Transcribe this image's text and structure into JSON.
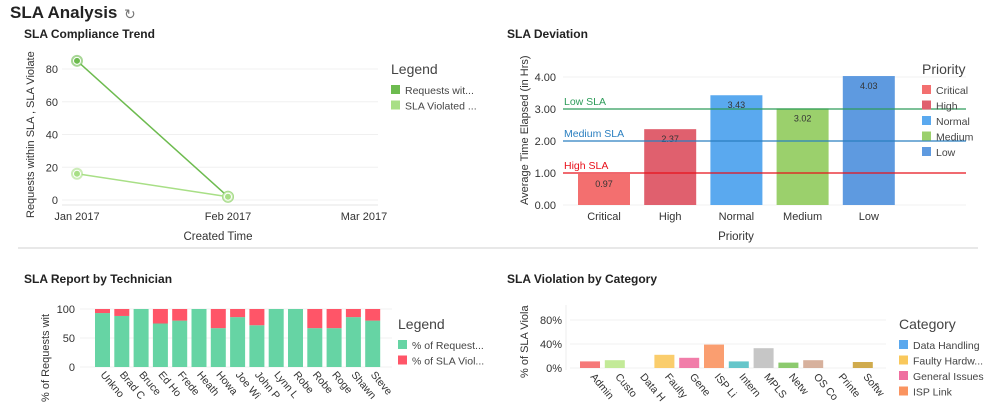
{
  "header": {
    "title": "SLA Analysis",
    "refresh_icon": "refresh-icon"
  },
  "chart_data": [
    {
      "type": "line",
      "title": "SLA Compliance Trend",
      "xlabel": "Created Time",
      "ylabel": "Requests within SLA , SLA Violate",
      "categories": [
        "Jan 2017",
        "Feb 2017",
        "Mar 2017"
      ],
      "ylim": [
        0,
        90
      ],
      "yticks": [
        0,
        20,
        40,
        60,
        80
      ],
      "legend_title": "Legend",
      "legend": "right",
      "series": [
        {
          "name": "Requests wit...",
          "values": [
            85,
            2,
            null
          ],
          "color": "#6dbb4f"
        },
        {
          "name": "SLA Violated ...",
          "values": [
            16,
            2,
            null
          ],
          "color": "#a8df86"
        }
      ]
    },
    {
      "type": "bar",
      "title": "SLA Deviation",
      "xlabel": "Priority",
      "ylabel": "Average Time Elapsed (in Hrs)",
      "categories": [
        "Critical",
        "High",
        "Normal",
        "Medium",
        "Low"
      ],
      "values": [
        0.97,
        2.37,
        3.43,
        3.02,
        4.03
      ],
      "data_labels": [
        "0.97",
        "2.37",
        "3.43",
        "3.02",
        "4.03"
      ],
      "colors": [
        "#f36f6f",
        "#e0606e",
        "#5aa9ef",
        "#9bd06c",
        "#5e9ae0"
      ],
      "ylim": [
        0,
        4.4
      ],
      "yticks": [
        "0.00",
        "1.00",
        "2.00",
        "3.00",
        "4.00"
      ],
      "thresholds": [
        {
          "label": "Low SLA",
          "value": 3,
          "color": "#2e9c5a"
        },
        {
          "label": "Medium SLA",
          "value": 2,
          "color": "#2a7fc0"
        },
        {
          "label": "High SLA",
          "value": 1,
          "color": "#e8101a"
        }
      ],
      "legend_title": "Priority",
      "legend": "right"
    },
    {
      "type": "bar",
      "stacked": true,
      "title": "SLA Report by Technician",
      "ylabel": "% of Requests wit",
      "categories": [
        "Unkno",
        "Brad C",
        "Bruce",
        "Ed Ho",
        "Frede",
        "Heath",
        "Howa",
        "Joe Wi",
        "John P",
        "Lynn L",
        "Robe",
        "Robe",
        "Roge",
        "Shawn",
        "Steve"
      ],
      "ylim": [
        0,
        100
      ],
      "yticks": [
        0,
        50,
        100
      ],
      "legend_title": "Legend",
      "legend": "right",
      "series": [
        {
          "name": "% of Request...",
          "color": "#66d4a4",
          "values": [
            93,
            88,
            100,
            75,
            80,
            100,
            67,
            86,
            72,
            100,
            100,
            67,
            67,
            86,
            80
          ]
        },
        {
          "name": "% of SLA Viol...",
          "color": "#ff5568",
          "values": [
            7,
            12,
            0,
            25,
            20,
            0,
            33,
            14,
            28,
            0,
            0,
            33,
            33,
            14,
            20
          ]
        }
      ]
    },
    {
      "type": "bar",
      "title": "SLA Violation by Category",
      "ylabel": "% of SLA Viola",
      "categories": [
        "Admin",
        "Custo",
        "Data H",
        "Faulty",
        "Gene",
        "ISP Li",
        "Intern",
        "MPLS",
        "Netw",
        "OS Co",
        "Printe",
        "Softw"
      ],
      "values": [
        11,
        13,
        0,
        22,
        17,
        39,
        11,
        33,
        9,
        13,
        0,
        10
      ],
      "colors": [
        "#f56b6b",
        "#bde88d",
        "#5aa8ee",
        "#f9c85c",
        "#ef6fa0",
        "#fa9460",
        "#55c0c4",
        "#c0c0c0",
        "#80c45e",
        "#d3a892",
        "#999999",
        "#cba23a"
      ],
      "ylim": [
        0,
        90
      ],
      "yticks": [
        "0%",
        "40%",
        "80%"
      ],
      "legend_title": "Category",
      "legend": "right",
      "legend_items": [
        {
          "label": "Data Handling",
          "color": "#5aa8ee"
        },
        {
          "label": "Faulty Hardw...",
          "color": "#f9c85c"
        },
        {
          "label": "General Issues",
          "color": "#ef6fa0"
        },
        {
          "label": "ISP Link",
          "color": "#fa9460"
        }
      ]
    }
  ]
}
